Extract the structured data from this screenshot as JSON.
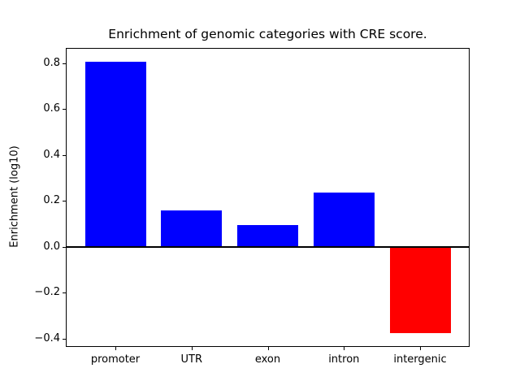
{
  "figure": {
    "background": "#ffffff",
    "text_color": "#000000"
  },
  "chart_data": {
    "type": "bar",
    "title": "Enrichment of genomic categories with CRE score.",
    "xlabel": "",
    "ylabel": "Enrichment (log10)",
    "categories": [
      "promoter",
      "UTR",
      "exon",
      "intron",
      "intergenic"
    ],
    "values": [
      0.805,
      0.16,
      0.095,
      0.235,
      -0.375
    ],
    "bar_colors": [
      "#0000ff",
      "#0000ff",
      "#0000ff",
      "#0000ff",
      "#ff0000"
    ],
    "positive_color": "#0000ff",
    "negative_color": "#ff0000",
    "bar_width": 0.8,
    "xlim": [
      -0.64,
      4.64
    ],
    "ylim": [
      -0.433,
      0.863
    ],
    "ytick_values": [
      0.8,
      0.6,
      0.4,
      0.2,
      0.0,
      -0.2,
      -0.4
    ],
    "ytick_labels": [
      "0.8",
      "0.6",
      "0.4",
      "0.2",
      "0.0",
      "−0.2",
      "−0.4"
    ],
    "grid": false,
    "legend": false,
    "zero_line": {
      "value": 0.0,
      "color": "#000000",
      "linewidth": 2
    }
  }
}
